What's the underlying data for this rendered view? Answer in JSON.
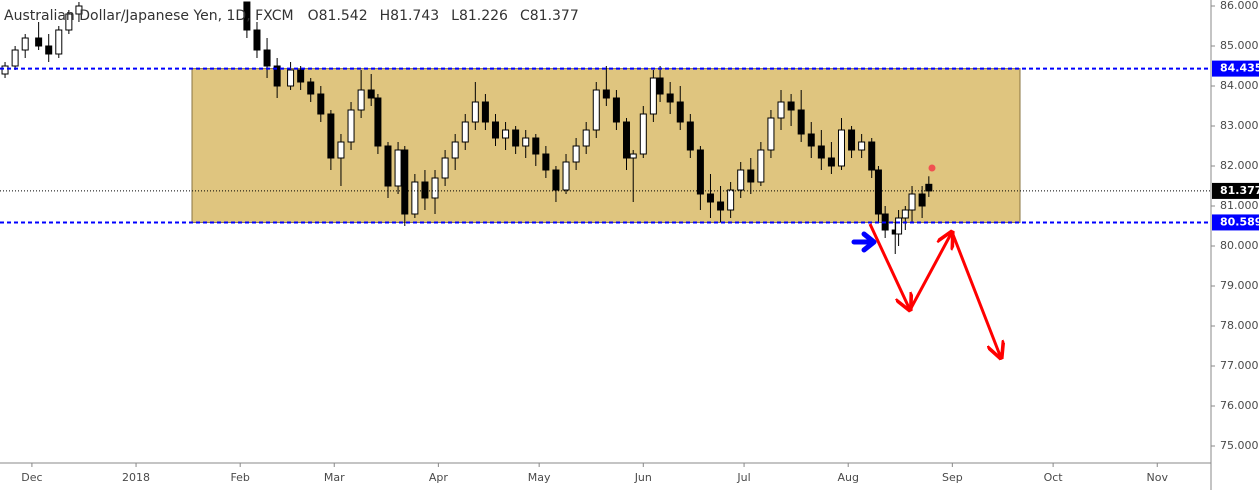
{
  "chart_data": {
    "type": "candlestick",
    "title": "Australian Dollar/Japanese Yen, 1D, FXCM",
    "ohlc": [
      {
        "key": "O",
        "value": 81.542
      },
      {
        "key": "H",
        "value": 81.743
      },
      {
        "key": "L",
        "value": 81.226
      },
      {
        "key": "C",
        "value": 81.377
      }
    ],
    "x": [
      -8,
      -5,
      -2,
      2,
      5,
      8,
      11,
      14,
      64,
      67,
      70,
      73,
      77,
      80,
      83,
      86,
      89,
      92,
      95,
      98,
      101,
      103,
      106,
      109,
      111,
      114,
      117,
      120,
      123,
      126,
      129,
      132,
      135,
      138,
      141,
      144,
      147,
      150,
      153,
      156,
      159,
      162,
      165,
      168,
      171,
      174,
      177,
      179,
      182,
      185,
      187,
      190,
      193,
      196,
      199,
      202,
      205,
      208,
      211,
      214,
      217,
      220,
      223,
      226,
      229,
      232,
      235,
      238,
      241,
      244,
      247,
      250,
      252,
      254,
      257,
      258,
      260,
      262,
      265,
      267
    ],
    "open": [
      84.3,
      84.5,
      84.9,
      85.2,
      85.0,
      84.8,
      85.4,
      85.8,
      86.1,
      85.4,
      84.9,
      84.5,
      84.0,
      84.4,
      84.1,
      83.8,
      83.3,
      82.2,
      82.6,
      83.4,
      83.9,
      83.7,
      82.5,
      81.5,
      82.4,
      80.8,
      81.6,
      81.2,
      81.7,
      82.2,
      82.6,
      83.1,
      83.6,
      83.1,
      82.7,
      82.9,
      82.5,
      82.7,
      82.3,
      81.9,
      81.4,
      82.1,
      82.5,
      82.9,
      83.9,
      83.7,
      83.1,
      82.2,
      82.3,
      83.3,
      84.2,
      83.8,
      83.6,
      83.1,
      82.4,
      81.3,
      81.1,
      80.9,
      81.4,
      81.9,
      81.6,
      82.4,
      83.2,
      83.6,
      83.4,
      82.8,
      82.5,
      82.2,
      82.0,
      82.9,
      82.4,
      82.6,
      81.9,
      80.8,
      80.4,
      80.3,
      80.7,
      80.9,
      81.3,
      81.542
    ],
    "high": [
      84.6,
      85.0,
      85.3,
      85.6,
      85.3,
      85.5,
      85.9,
      86.1,
      86.1,
      85.6,
      85.2,
      84.7,
      84.6,
      84.5,
      84.2,
      84.0,
      83.4,
      82.8,
      83.6,
      84.4,
      84.3,
      83.8,
      82.6,
      82.6,
      82.5,
      81.8,
      81.9,
      81.9,
      82.4,
      82.8,
      83.3,
      84.1,
      83.8,
      83.3,
      83.1,
      83.0,
      82.9,
      82.8,
      82.5,
      82.0,
      82.3,
      82.7,
      83.1,
      84.1,
      84.5,
      83.9,
      83.2,
      82.4,
      83.5,
      84.4,
      84.5,
      84.1,
      84.0,
      83.3,
      82.5,
      81.8,
      81.5,
      81.6,
      82.1,
      82.2,
      82.6,
      83.4,
      83.9,
      83.8,
      83.9,
      83.1,
      82.9,
      82.6,
      83.2,
      83.0,
      82.8,
      82.7,
      82.0,
      81.0,
      80.6,
      80.9,
      81.0,
      81.5,
      81.5,
      81.743
    ],
    "low": [
      84.2,
      84.4,
      84.7,
      84.9,
      84.6,
      84.7,
      85.3,
      85.6,
      85.2,
      84.7,
      84.2,
      83.7,
      83.9,
      83.9,
      83.6,
      83.1,
      81.9,
      81.5,
      82.4,
      83.2,
      83.5,
      82.3,
      81.2,
      81.3,
      80.5,
      80.7,
      80.9,
      80.8,
      81.5,
      81.9,
      82.4,
      82.9,
      82.9,
      82.5,
      82.4,
      82.3,
      82.2,
      82.0,
      81.7,
      81.1,
      81.3,
      81.9,
      82.3,
      82.7,
      83.5,
      82.9,
      81.9,
      81.1,
      82.2,
      83.1,
      83.6,
      83.3,
      82.9,
      82.2,
      80.9,
      80.7,
      80.6,
      80.7,
      81.2,
      81.3,
      81.5,
      82.2,
      82.9,
      83.0,
      82.6,
      82.2,
      81.9,
      81.8,
      81.9,
      82.2,
      82.2,
      81.7,
      80.6,
      80.2,
      79.8,
      80.0,
      80.4,
      80.6,
      80.7,
      81.226
    ],
    "close": [
      84.5,
      84.9,
      85.2,
      85.0,
      84.8,
      85.4,
      85.8,
      86.0,
      85.4,
      84.9,
      84.5,
      84.0,
      84.4,
      84.1,
      83.8,
      83.3,
      82.2,
      82.6,
      83.4,
      83.9,
      83.7,
      82.5,
      81.5,
      82.4,
      80.8,
      81.6,
      81.2,
      81.7,
      82.2,
      82.6,
      83.1,
      83.6,
      83.1,
      82.7,
      82.9,
      82.5,
      82.7,
      82.3,
      81.9,
      81.4,
      82.1,
      82.5,
      82.9,
      83.9,
      83.7,
      83.1,
      82.2,
      82.3,
      83.3,
      84.2,
      83.8,
      83.6,
      83.1,
      82.4,
      81.3,
      81.1,
      80.9,
      81.4,
      81.9,
      81.6,
      82.4,
      83.2,
      83.6,
      83.4,
      82.8,
      82.5,
      82.2,
      82.0,
      82.9,
      82.4,
      82.6,
      81.9,
      80.8,
      80.4,
      80.3,
      80.7,
      80.9,
      81.3,
      81.0,
      81.377
    ],
    "xlim": [
      -9.5,
      351
    ],
    "xticks": [
      {
        "value": 0,
        "label": "Dec"
      },
      {
        "value": 31,
        "label": "2018"
      },
      {
        "value": 62,
        "label": "Feb"
      },
      {
        "value": 90,
        "label": "Mar"
      },
      {
        "value": 121,
        "label": "Apr"
      },
      {
        "value": 151,
        "label": "May"
      },
      {
        "value": 182,
        "label": "Jun"
      },
      {
        "value": 212,
        "label": "Jul"
      },
      {
        "value": 243,
        "label": "Aug"
      },
      {
        "value": 274,
        "label": "Sep"
      },
      {
        "value": 304,
        "label": "Oct"
      },
      {
        "value": 335,
        "label": "Nov"
      }
    ],
    "ylim": [
      74.575,
      86.15
    ],
    "yticks": [
      {
        "value": 75,
        "label": "75.000"
      },
      {
        "value": 76,
        "label": "76.000"
      },
      {
        "value": 77,
        "label": "77.000"
      },
      {
        "value": 78,
        "label": "78.000"
      },
      {
        "value": 79,
        "label": "79.000"
      },
      {
        "value": 80,
        "label": "80.000"
      },
      {
        "value": 81,
        "label": "81.000"
      },
      {
        "value": 82,
        "label": "82.000"
      },
      {
        "value": 83,
        "label": "83.000"
      },
      {
        "value": 84,
        "label": "84.000"
      },
      {
        "value": 85,
        "label": "85.000"
      },
      {
        "value": 86,
        "label": "86.000"
      }
    ],
    "levels": [
      {
        "value": 84.435,
        "color": "#0000ff",
        "style": "dashed"
      },
      {
        "value": 81.377,
        "color": "#000000",
        "style": "dotted"
      },
      {
        "value": 80.589,
        "color": "#0000ff",
        "style": "dashed"
      }
    ],
    "up_color": "#ffffff",
    "down_color": "#000000",
    "zone_color": "#dfc57f"
  }
}
